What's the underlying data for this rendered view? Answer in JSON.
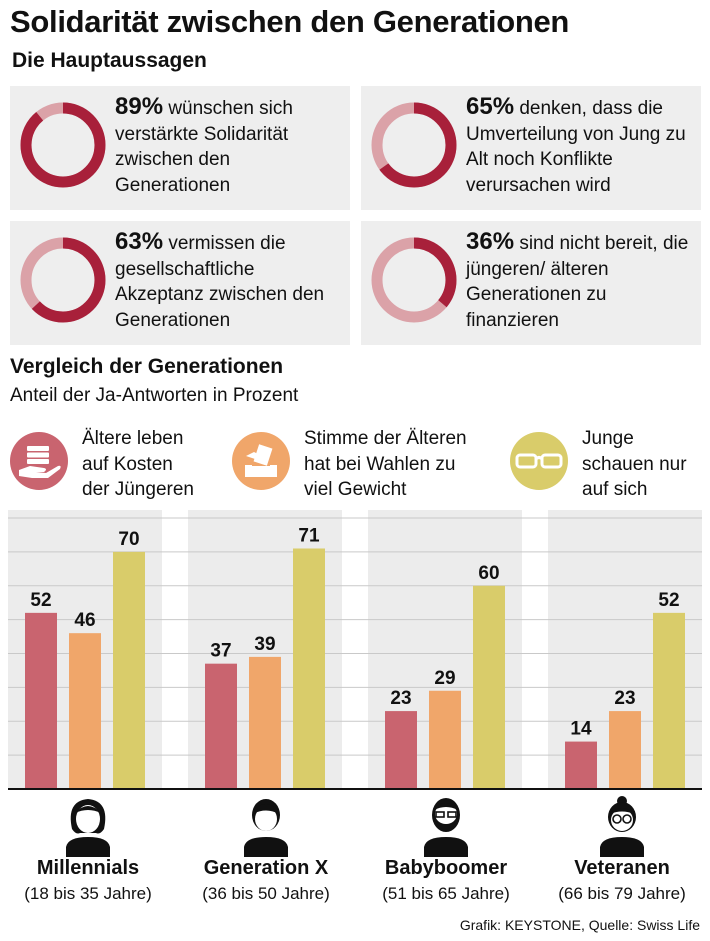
{
  "header": {
    "title": "Solidarität zwischen den Generationen",
    "subtitle": "Die Hauptaussagen"
  },
  "key_statements": [
    {
      "percent_label": "89%",
      "value": 89,
      "text": "wünschen sich verstärkte Solidarität zwischen den Generationen"
    },
    {
      "percent_label": "65%",
      "value": 65,
      "text": "denken, dass die Umverteilung von Jung zu Alt noch Konflikte verursachen wird"
    },
    {
      "percent_label": "63%",
      "value": 63,
      "text": "vermissen die gesellschaftliche Akzeptanz zwischen den Generationen"
    },
    {
      "percent_label": "36%",
      "value": 36,
      "text": "sind nicht bereit, die jüngeren/ älteren Generationen zu finanzieren"
    }
  ],
  "donut_colors": {
    "filled": "#a8203a",
    "remainder": "#dba2a8"
  },
  "comparison": {
    "title": "Vergleich der Generationen",
    "subtitle": "Anteil der Ja-Antworten in Prozent"
  },
  "legend": [
    {
      "lines": [
        "Ältere leben",
        "auf Kosten",
        "der Jüngeren"
      ],
      "color": "#c9646f",
      "icon": "hand-money-icon"
    },
    {
      "lines": [
        "Stimme der Älteren",
        "hat bei Wahlen zu",
        "viel Gewicht"
      ],
      "color": "#f0a66a",
      "icon": "ballot-box-icon"
    },
    {
      "lines": [
        "Junge",
        "schauen nur",
        "auf sich"
      ],
      "color": "#d9cc6a",
      "icon": "glasses-icon"
    }
  ],
  "chart_data": {
    "type": "bar",
    "categories": [
      "Millennials",
      "Generation X",
      "Babyboomer",
      "Veteranen"
    ],
    "category_details": [
      "(18 bis 35 Jahre)",
      "(36 bis 50 Jahre)",
      "(51 bis 65 Jahre)",
      "(66 bis 79 Jahre)"
    ],
    "series": [
      {
        "name": "Ältere leben auf Kosten der Jüngeren",
        "color": "#c9646f",
        "values": [
          52,
          37,
          23,
          14
        ]
      },
      {
        "name": "Stimme der Älteren hat bei Wahlen zu viel Gewicht",
        "color": "#f0a66a",
        "values": [
          46,
          39,
          29,
          23
        ]
      },
      {
        "name": "Junge schauen nur auf sich",
        "color": "#d9cc6a",
        "values": [
          70,
          71,
          60,
          52
        ]
      }
    ],
    "ylim": [
      0,
      80
    ],
    "grid": true,
    "data_labels": true
  },
  "generation_icons": [
    "millennial-woman-icon",
    "generation-x-man-icon",
    "babyboomer-bearded-man-icon",
    "veteran-woman-glasses-icon"
  ],
  "source": "Grafik: KEYSTONE, Quelle: Swiss Life"
}
